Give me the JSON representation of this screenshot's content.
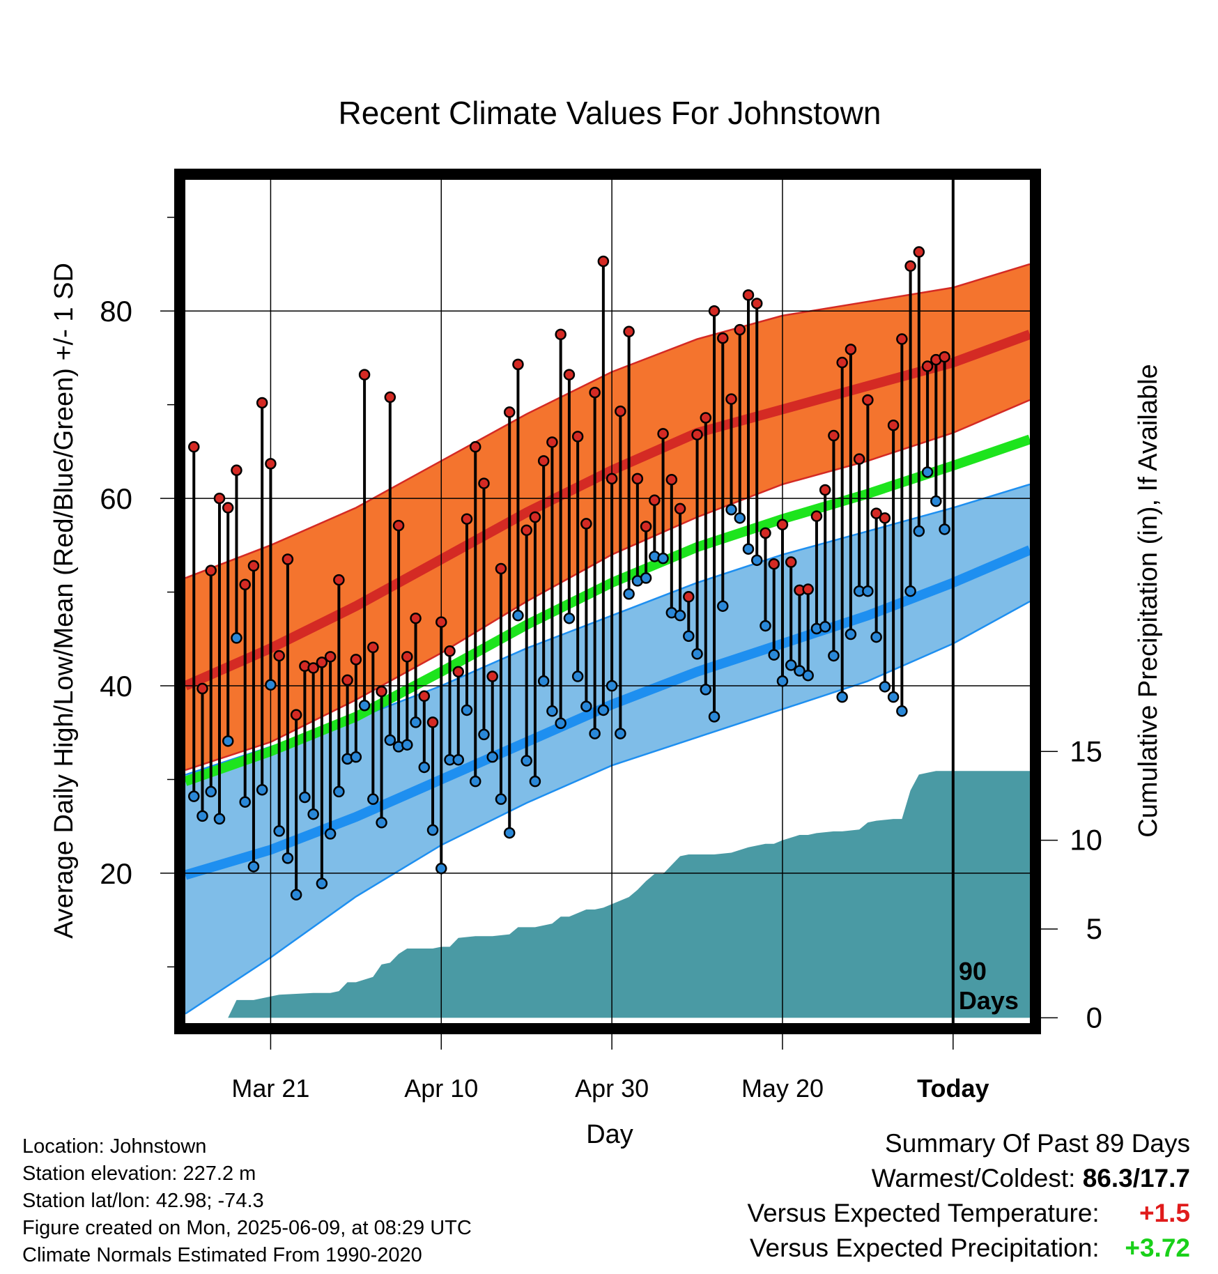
{
  "chart_data": {
    "type": "line",
    "title": "Recent Climate Values For Johnstown",
    "xlabel": "Day",
    "ylabel": "Average Daily High/Low/Mean (Red/Blue/Green) +/- 1 SD",
    "y2label": "Cumulative Precipitation (in), If Available",
    "xlim": [
      -90,
      9
    ],
    "ylim": [
      4,
      94
    ],
    "y2lim": [
      -0.3,
      47.2
    ],
    "x_ticks": [
      {
        "x": -80,
        "label": "Mar 21"
      },
      {
        "x": -60,
        "label": "Apr 10"
      },
      {
        "x": -40,
        "label": "Apr 30"
      },
      {
        "x": -20,
        "label": "May 20"
      },
      {
        "x": 0,
        "label": "Today"
      }
    ],
    "y_ticks": [
      20,
      40,
      60,
      80
    ],
    "y2_ticks": [
      0,
      5,
      10,
      15
    ],
    "today_marker": {
      "x": 0,
      "label_line1": "90",
      "label_line2": "Days"
    },
    "normals": {
      "x": [
        -90,
        -80,
        -70,
        -60,
        -50,
        -40,
        -30,
        -20,
        -10,
        0,
        9
      ],
      "high_mean": [
        40,
        44,
        48.5,
        53.5,
        58.5,
        63,
        67,
        69.5,
        72,
        74.5,
        77.5
      ],
      "high_sd_upper": [
        51.5,
        55,
        59,
        64,
        69,
        73.5,
        77,
        79.5,
        81,
        82.5,
        85
      ],
      "high_sd_lower": [
        31,
        34,
        38.5,
        43.5,
        49,
        54,
        58,
        61.5,
        64,
        67,
        70.5
      ],
      "mean": [
        29.8,
        33,
        36.7,
        41.5,
        46.5,
        51,
        54.8,
        57.8,
        60.5,
        63.5,
        66.3
      ],
      "low_mean": [
        19.8,
        22.5,
        26,
        30,
        34,
        38,
        41.5,
        44.5,
        47.5,
        51,
        54.5
      ],
      "low_sd_upper": [
        30.5,
        33.5,
        36.5,
        40,
        44,
        47.5,
        51,
        54,
        56.5,
        59,
        61.5
      ],
      "low_sd_lower": [
        5,
        11,
        17.5,
        23,
        27.5,
        31.5,
        34.5,
        37.5,
        40.5,
        44.5,
        49
      ]
    },
    "series": [
      {
        "name": "High",
        "x": [
          -89,
          -88,
          -87,
          -86,
          -85,
          -84,
          -83,
          -82,
          -81,
          -80,
          -79,
          -78,
          -77,
          -76,
          -75,
          -74,
          -73,
          -72,
          -71,
          -70,
          -69,
          -68,
          -67,
          -66,
          -65,
          -64,
          -63,
          -62,
          -61,
          -60,
          -59,
          -58,
          -57,
          -56,
          -55,
          -54,
          -53,
          -52,
          -51,
          -50,
          -49,
          -48,
          -47,
          -46,
          -45,
          -44,
          -43,
          -42,
          -41,
          -40,
          -39,
          -38,
          -37,
          -36,
          -35,
          -34,
          -33,
          -32,
          -31,
          -30,
          -29,
          -28,
          -27,
          -26,
          -25,
          -24,
          -23,
          -22,
          -21,
          -20,
          -19,
          -18,
          -17,
          -16,
          -15,
          -14,
          -13,
          -12,
          -11,
          -10,
          -9,
          -8,
          -7,
          -6,
          -5,
          -4,
          -3,
          -2,
          -1
        ],
        "values": [
          65.5,
          39.7,
          52.3,
          60,
          59,
          63,
          50.8,
          52.8,
          70.2,
          63.7,
          43.2,
          53.5,
          36.9,
          42.1,
          41.9,
          42.5,
          43.1,
          51.3,
          40.6,
          42.8,
          73.2,
          44.1,
          39.4,
          70.8,
          57.1,
          43.1,
          47.2,
          38.9,
          36.1,
          46.8,
          43.7,
          41.5,
          57.8,
          65.5,
          61.6,
          41,
          52.5,
          69.2,
          74.3,
          56.6,
          58,
          64,
          66,
          77.5,
          73.2,
          66.6,
          57.3,
          71.3,
          85.3,
          62.1,
          69.3,
          77.8,
          62.1,
          57,
          59.8,
          66.9,
          62,
          58.9,
          49.5,
          66.8,
          68.6,
          80,
          77.1,
          70.6,
          78,
          81.7,
          80.8,
          56.3,
          53,
          57.2,
          53.2,
          50.2,
          50.3,
          58.1,
          60.9,
          66.7,
          74.5,
          75.9,
          64.2,
          70.5,
          58.4,
          57.9,
          67.8,
          77,
          84.8,
          86.3,
          74.1,
          74.8,
          75.1
        ]
      },
      {
        "name": "Low",
        "x": [
          -89,
          -88,
          -87,
          -86,
          -85,
          -84,
          -83,
          -82,
          -81,
          -80,
          -79,
          -78,
          -77,
          -76,
          -75,
          -74,
          -73,
          -72,
          -71,
          -70,
          -69,
          -68,
          -67,
          -66,
          -65,
          -64,
          -63,
          -62,
          -61,
          -60,
          -59,
          -58,
          -57,
          -56,
          -55,
          -54,
          -53,
          -52,
          -51,
          -50,
          -49,
          -48,
          -47,
          -46,
          -45,
          -44,
          -43,
          -42,
          -41,
          -40,
          -39,
          -38,
          -37,
          -36,
          -35,
          -34,
          -33,
          -32,
          -31,
          -30,
          -29,
          -28,
          -27,
          -26,
          -25,
          -24,
          -23,
          -22,
          -21,
          -20,
          -19,
          -18,
          -17,
          -16,
          -15,
          -14,
          -13,
          -12,
          -11,
          -10,
          -9,
          -8,
          -7,
          -6,
          -5,
          -4,
          -3,
          -2,
          -1
        ],
        "values": [
          28.2,
          26.1,
          28.7,
          25.8,
          34.1,
          45.1,
          27.6,
          20.7,
          28.9,
          40.1,
          24.5,
          21.6,
          17.7,
          28.1,
          26.3,
          18.9,
          24.2,
          28.7,
          32.2,
          32.4,
          37.9,
          27.9,
          25.4,
          34.2,
          33.5,
          33.7,
          36.1,
          31.3,
          24.6,
          20.5,
          32.1,
          32.1,
          37.4,
          29.8,
          34.8,
          32.4,
          27.9,
          24.3,
          47.5,
          32,
          29.8,
          40.5,
          37.3,
          36,
          47.2,
          41,
          37.8,
          34.9,
          37.4,
          40,
          34.9,
          49.8,
          51.2,
          51.5,
          53.8,
          53.6,
          47.8,
          47.5,
          45.3,
          43.4,
          39.6,
          36.7,
          48.5,
          58.8,
          57.9,
          54.6,
          53.4,
          46.4,
          43.3,
          40.5,
          42.2,
          41.6,
          41.1,
          46.1,
          46.3,
          43.2,
          38.8,
          45.5,
          50.1,
          50.1,
          45.2,
          39.9,
          38.8,
          37.3,
          50.1,
          56.5,
          62.8,
          59.7,
          56.7
        ]
      }
    ],
    "precipitation": {
      "x": [
        -85,
        -84,
        -82,
        -80,
        -79,
        -75,
        -74,
        -73,
        -72,
        -71,
        -70,
        -68,
        -67,
        -66,
        -65,
        -64,
        -63,
        -61,
        -60,
        -59,
        -58,
        -56,
        -54,
        -52,
        -51,
        -49,
        -47,
        -46,
        -45,
        -43,
        -42,
        -41,
        -40,
        -38,
        -37,
        -36,
        -35,
        -34,
        -33,
        -32,
        -31,
        -30,
        -28,
        -26,
        -24,
        -22,
        -21,
        -20,
        -18,
        -17,
        -16,
        -14,
        -13,
        -11,
        -10,
        -9,
        -7,
        -6,
        -5,
        -4,
        -3,
        -2,
        -1,
        0,
        9
      ],
      "values": [
        0,
        1,
        1,
        1.2,
        1.3,
        1.4,
        1.4,
        1.4,
        1.5,
        2,
        2,
        2.3,
        3,
        3.1,
        3.6,
        3.9,
        3.9,
        3.9,
        4,
        4,
        4.5,
        4.6,
        4.6,
        4.7,
        5.1,
        5.1,
        5.3,
        5.7,
        5.7,
        6.1,
        6.1,
        6.2,
        6.4,
        6.8,
        7.2,
        7.7,
        8.1,
        8.1,
        8.6,
        9.1,
        9.2,
        9.2,
        9.2,
        9.3,
        9.6,
        9.8,
        9.8,
        10,
        10.3,
        10.3,
        10.4,
        10.5,
        10.5,
        10.6,
        11,
        11.1,
        11.2,
        11.2,
        12.8,
        13.7,
        13.8,
        13.9,
        13.9,
        13.9,
        13.9
      ]
    }
  },
  "info": {
    "location": "Location: Johnstown",
    "elevation": "Station elevation: 227.2 m",
    "latlon": "Station lat/lon: 42.98; -74.3",
    "created": "Figure created on Mon, 2025-06-09, at 08:29 UTC",
    "normals_period": "Climate Normals Estimated From 1990-2020"
  },
  "summary": {
    "heading": "Summary Of Past 89 Days",
    "warm_cold_label": "Warmest/Coldest:",
    "warm_cold_value": "86.3/17.7",
    "temp_label": "Versus Expected Temperature:",
    "temp_value": "+1.5",
    "precip_label": "Versus Expected Precipitation:",
    "precip_value": "+3.72"
  },
  "colors": {
    "high_band": "#f4742e",
    "high_line": "#d42a24",
    "low_band": "#7fbde8",
    "low_line": "#1e8ff0",
    "mean_line": "#1de41d",
    "precip": "#4a9aa4",
    "high_dot": "#d42a24",
    "low_dot": "#2a88d8"
  }
}
